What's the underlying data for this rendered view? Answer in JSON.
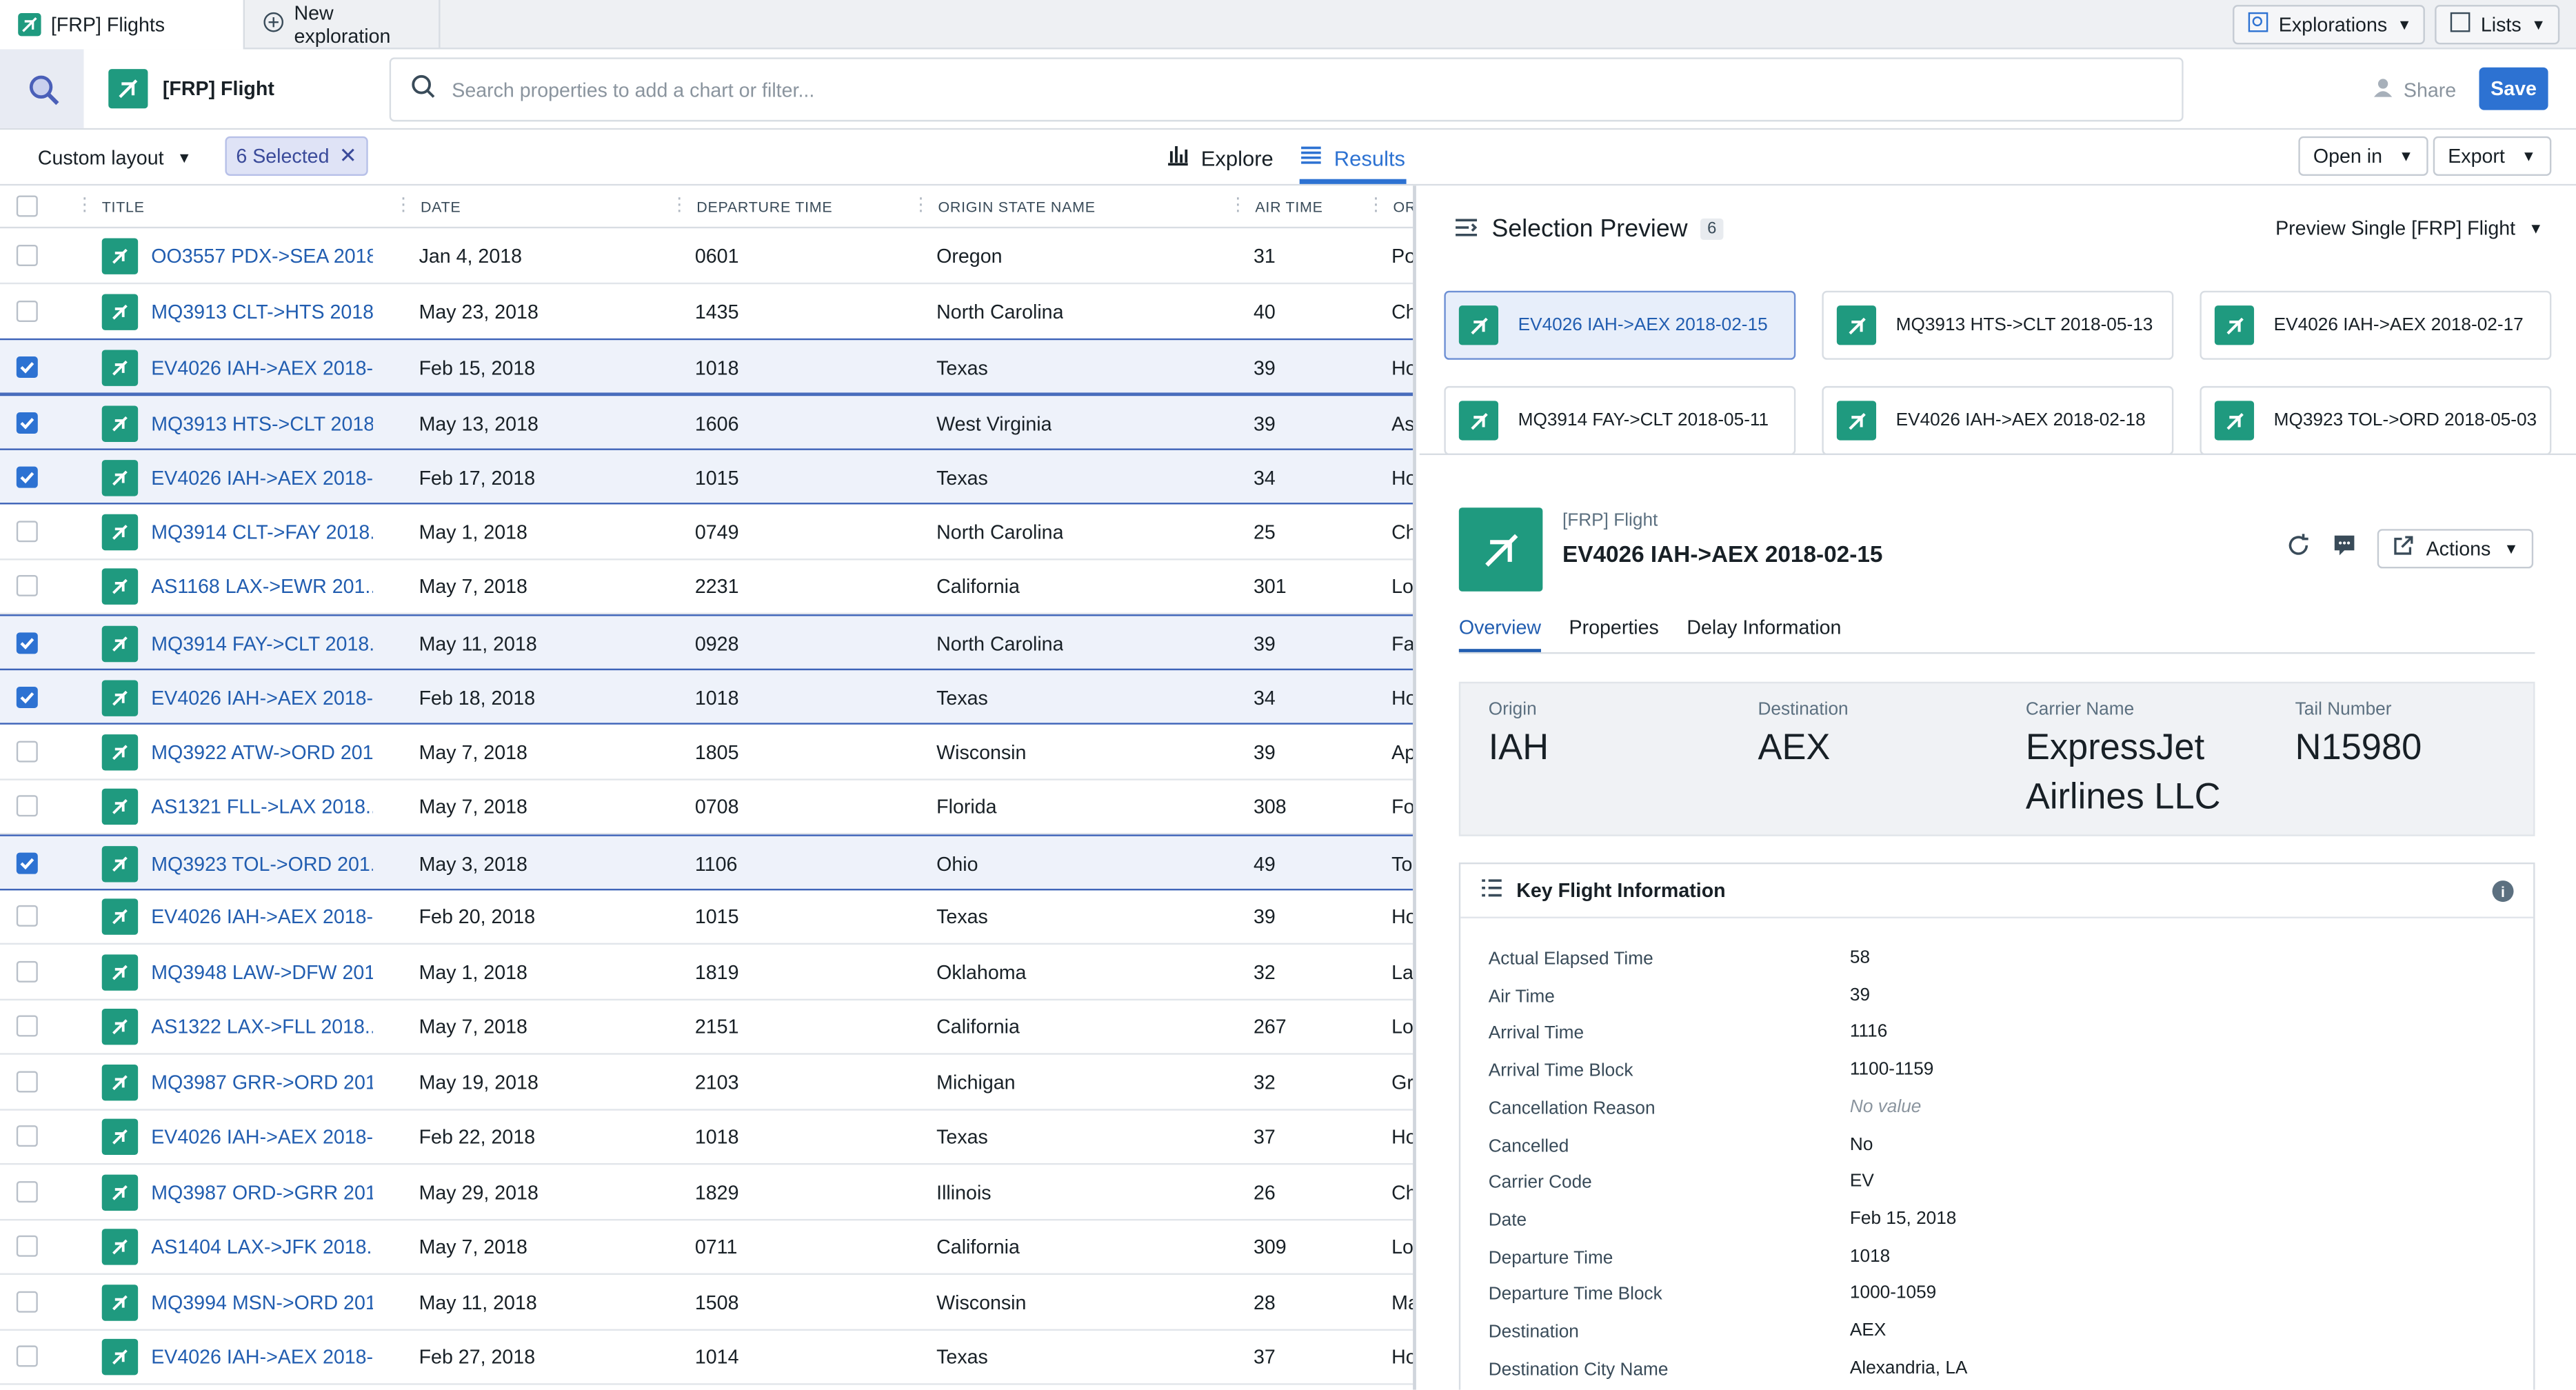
{
  "tabs": {
    "active_label": "[FRP] Flights",
    "new_label": "New exploration",
    "explorations_label": "Explorations",
    "lists_label": "Lists"
  },
  "header": {
    "object_type": "[FRP] Flight",
    "search_placeholder": "Search properties to add a chart or filter...",
    "share_label": "Share",
    "save_label": "Save"
  },
  "toolbar": {
    "layout_label": "Custom layout",
    "selected_label": "6 Selected",
    "explore_label": "Explore",
    "results_label": "Results",
    "open_in_label": "Open in",
    "export_label": "Export"
  },
  "table": {
    "columns": [
      "TITLE",
      "DATE",
      "DEPARTURE TIME",
      "ORIGIN STATE NAME",
      "AIR TIME",
      "OR"
    ],
    "rows": [
      {
        "selected": false,
        "title": "OO3557 PDX->SEA 2018...",
        "date": "Jan 4, 2018",
        "dep": "0601",
        "state": "Oregon",
        "air": "31",
        "or": "Po"
      },
      {
        "selected": false,
        "title": "MQ3913 CLT->HTS 2018...",
        "date": "May 23, 2018",
        "dep": "1435",
        "state": "North Carolina",
        "air": "40",
        "or": "Ch"
      },
      {
        "selected": true,
        "title": "EV4026 IAH->AEX 2018-...",
        "date": "Feb 15, 2018",
        "dep": "1018",
        "state": "Texas",
        "air": "39",
        "or": "Ho"
      },
      {
        "selected": true,
        "title": "MQ3913 HTS->CLT 2018...",
        "date": "May 13, 2018",
        "dep": "1606",
        "state": "West Virginia",
        "air": "39",
        "or": "As"
      },
      {
        "selected": true,
        "title": "EV4026 IAH->AEX 2018-...",
        "date": "Feb 17, 2018",
        "dep": "1015",
        "state": "Texas",
        "air": "34",
        "or": "Ho"
      },
      {
        "selected": false,
        "title": "MQ3914 CLT->FAY 2018...",
        "date": "May 1, 2018",
        "dep": "0749",
        "state": "North Carolina",
        "air": "25",
        "or": "Ch"
      },
      {
        "selected": false,
        "title": "AS1168 LAX->EWR 201...",
        "date": "May 7, 2018",
        "dep": "2231",
        "state": "California",
        "air": "301",
        "or": "Lo"
      },
      {
        "selected": true,
        "title": "MQ3914 FAY->CLT 2018...",
        "date": "May 11, 2018",
        "dep": "0928",
        "state": "North Carolina",
        "air": "39",
        "or": "Fa"
      },
      {
        "selected": true,
        "title": "EV4026 IAH->AEX 2018-...",
        "date": "Feb 18, 2018",
        "dep": "1018",
        "state": "Texas",
        "air": "34",
        "or": "Ho"
      },
      {
        "selected": false,
        "title": "MQ3922 ATW->ORD 201...",
        "date": "May 7, 2018",
        "dep": "1805",
        "state": "Wisconsin",
        "air": "39",
        "or": "Ap"
      },
      {
        "selected": false,
        "title": "AS1321 FLL->LAX 2018...",
        "date": "May 7, 2018",
        "dep": "0708",
        "state": "Florida",
        "air": "308",
        "or": "Fo"
      },
      {
        "selected": true,
        "title": "MQ3923 TOL->ORD 201...",
        "date": "May 3, 2018",
        "dep": "1106",
        "state": "Ohio",
        "air": "49",
        "or": "To"
      },
      {
        "selected": false,
        "title": "EV4026 IAH->AEX 2018-...",
        "date": "Feb 20, 2018",
        "dep": "1015",
        "state": "Texas",
        "air": "39",
        "or": "Ho"
      },
      {
        "selected": false,
        "title": "MQ3948 LAW->DFW 201...",
        "date": "May 1, 2018",
        "dep": "1819",
        "state": "Oklahoma",
        "air": "32",
        "or": "La"
      },
      {
        "selected": false,
        "title": "AS1322 LAX->FLL 2018...",
        "date": "May 7, 2018",
        "dep": "2151",
        "state": "California",
        "air": "267",
        "or": "Lo"
      },
      {
        "selected": false,
        "title": "MQ3987 GRR->ORD 201...",
        "date": "May 19, 2018",
        "dep": "2103",
        "state": "Michigan",
        "air": "32",
        "or": "Gr"
      },
      {
        "selected": false,
        "title": "EV4026 IAH->AEX 2018-...",
        "date": "Feb 22, 2018",
        "dep": "1018",
        "state": "Texas",
        "air": "37",
        "or": "Ho"
      },
      {
        "selected": false,
        "title": "MQ3987 ORD->GRR 201...",
        "date": "May 29, 2018",
        "dep": "1829",
        "state": "Illinois",
        "air": "26",
        "or": "Ch"
      },
      {
        "selected": false,
        "title": "AS1404 LAX->JFK 2018...",
        "date": "May 7, 2018",
        "dep": "0711",
        "state": "California",
        "air": "309",
        "or": "Lo"
      },
      {
        "selected": false,
        "title": "MQ3994 MSN->ORD 201...",
        "date": "May 11, 2018",
        "dep": "1508",
        "state": "Wisconsin",
        "air": "28",
        "or": "Ma"
      },
      {
        "selected": false,
        "title": "EV4026 IAH->AEX 2018-...",
        "date": "Feb 27, 2018",
        "dep": "1014",
        "state": "Texas",
        "air": "37",
        "or": "Ho"
      }
    ]
  },
  "preview": {
    "title": "Selection Preview",
    "count": "6",
    "mode_label": "Preview Single [FRP] Flight",
    "cards": [
      {
        "label": "EV4026 IAH->AEX 2018-02-15",
        "active": true
      },
      {
        "label": "MQ3913 HTS->CLT 2018-05-13",
        "active": false
      },
      {
        "label": "EV4026 IAH->AEX 2018-02-17",
        "active": false
      },
      {
        "label": "MQ3914 FAY->CLT 2018-05-11",
        "active": false
      },
      {
        "label": "EV4026 IAH->AEX 2018-02-18",
        "active": false
      },
      {
        "label": "MQ3923 TOL->ORD 2018-05-03",
        "active": false
      }
    ]
  },
  "detail": {
    "type_label": "[FRP] Flight",
    "title": "EV4026 IAH->AEX 2018-02-15",
    "actions_label": "Actions",
    "tabs": [
      "Overview",
      "Properties",
      "Delay Information"
    ],
    "summary": [
      {
        "label": "Origin",
        "value": "IAH"
      },
      {
        "label": "Destination",
        "value": "AEX"
      },
      {
        "label": "Carrier Name",
        "value": "ExpressJet Airlines LLC"
      },
      {
        "label": "Tail Number",
        "value": "N15980"
      }
    ],
    "key_info_title": "Key Flight Information",
    "key_info": [
      {
        "label": "Actual Elapsed Time",
        "value": "58"
      },
      {
        "label": "Air Time",
        "value": "39"
      },
      {
        "label": "Arrival Time",
        "value": "1116"
      },
      {
        "label": "Arrival Time Block",
        "value": "1100-1159"
      },
      {
        "label": "Cancellation Reason",
        "value": "No value",
        "empty": true
      },
      {
        "label": "Cancelled",
        "value": "No"
      },
      {
        "label": "Carrier Code",
        "value": "EV"
      },
      {
        "label": "Date",
        "value": "Feb 15, 2018"
      },
      {
        "label": "Departure Time",
        "value": "1018"
      },
      {
        "label": "Departure Time Block",
        "value": "1000-1059"
      },
      {
        "label": "Destination",
        "value": "AEX"
      },
      {
        "label": "Destination City Name",
        "value": "Alexandria, LA"
      }
    ]
  }
}
